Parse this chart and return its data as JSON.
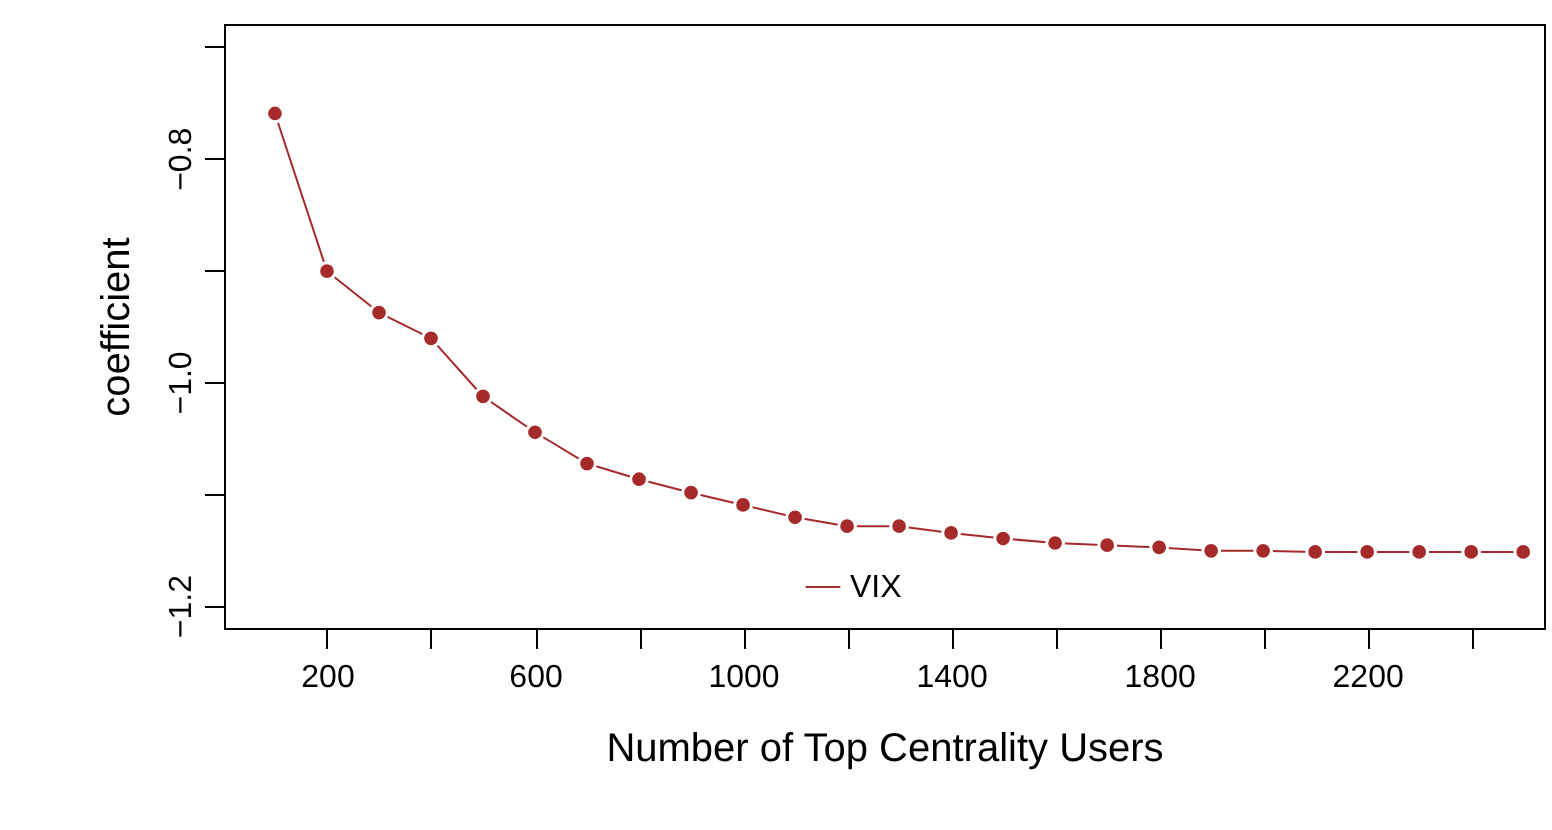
{
  "chart_data": {
    "type": "line",
    "xlabel": "Number of Top Centrality Users",
    "ylabel": "coefficient",
    "x": [
      100,
      200,
      300,
      400,
      500,
      600,
      700,
      800,
      900,
      1000,
      1100,
      1200,
      1300,
      1400,
      1500,
      1600,
      1700,
      1800,
      1900,
      2000,
      2100,
      2200,
      2300,
      2400,
      2500
    ],
    "series": [
      {
        "name": "VIX",
        "color": "#a52a2a",
        "values": [
          -0.76,
          -0.901,
          -0.938,
          -0.961,
          -1.013,
          -1.045,
          -1.073,
          -1.087,
          -1.099,
          -1.11,
          -1.121,
          -1.129,
          -1.129,
          -1.135,
          -1.14,
          -1.144,
          -1.146,
          -1.148,
          -1.151,
          -1.151,
          -1.152,
          -1.152,
          -1.152,
          -1.152,
          -1.152
        ]
      }
    ],
    "xlim": [
      2,
      2540
    ],
    "xticks": [
      200,
      {
        "value": 400,
        "label": null
      },
      600,
      {
        "value": 800,
        "label": null
      },
      1000,
      {
        "value": 1200,
        "label": null
      },
      1400,
      {
        "value": 1600,
        "label": null
      },
      1800,
      {
        "value": 2000,
        "label": null
      },
      2200,
      {
        "value": 2400,
        "label": null
      }
    ],
    "ylim": [
      -1.22,
      -0.68
    ],
    "yticks": [
      {
        "value": -1.2,
        "label": "−1.2"
      },
      {
        "value": -1.1,
        "label": null
      },
      {
        "value": -1.0,
        "label": "−1.0"
      },
      {
        "value": -0.9,
        "label": null
      },
      {
        "value": -0.8,
        "label": "−0.8"
      },
      {
        "value": -0.7,
        "label": null
      }
    ],
    "grid": false,
    "legend": "bottom",
    "marker": "circle",
    "line_style": "solid"
  }
}
